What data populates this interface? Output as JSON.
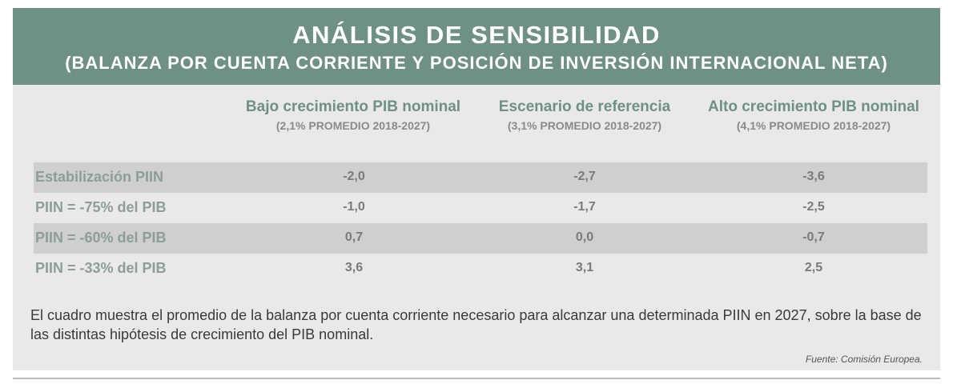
{
  "header": {
    "title": "ANÁLISIS DE SENSIBILIDAD",
    "subtitle": "(BALANZA POR CUENTA CORRIENTE Y POSICIÓN DE INVERSIÓN INTERNACIONAL NETA)"
  },
  "chart_data": {
    "type": "table",
    "columns": [
      {
        "name": "Bajo crecimiento PIB nominal",
        "note": "(2,1% PROMEDIO 2018-2027)"
      },
      {
        "name": "Escenario de referencia",
        "note": "(3,1% PROMEDIO 2018-2027)"
      },
      {
        "name": "Alto crecimiento PIB nominal",
        "note": "(4,1% PROMEDIO 2018-2027)"
      }
    ],
    "rows": [
      {
        "label": "Estabilización PIIN",
        "values": [
          "-2,0",
          "-2,7",
          "-3,6"
        ]
      },
      {
        "label": "PIIN = -75% del PIB",
        "values": [
          "-1,0",
          "-1,7",
          "-2,5"
        ]
      },
      {
        "label": "PIIN = -60% del PIB",
        "values": [
          "0,7",
          "0,0",
          "-0,7"
        ]
      },
      {
        "label": "PIIN = -33% del PIB",
        "values": [
          "3,6",
          "3,1",
          "2,5"
        ]
      }
    ]
  },
  "footnote": "El cuadro muestra el promedio de la balanza por cuenta corriente necesario para alcanzar una determinada PIIN en 2027, sobre la base de las distintas hipótesis de crecimiento del PIB nominal.",
  "source": "Fuente: Comisión Europea.",
  "colors": {
    "header_bg": "#6f9084",
    "accent_text": "#6f9084",
    "panel_bg": "#e9e9e9",
    "row_shade": "#cfcfcf"
  }
}
